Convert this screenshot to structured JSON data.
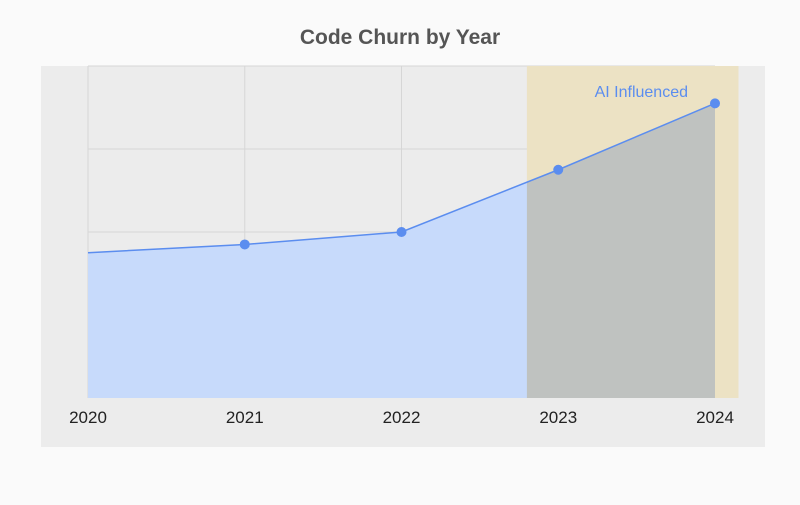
{
  "chart_data": {
    "type": "area",
    "title": "Code Churn by Year",
    "categories": [
      "2020",
      "2021",
      "2022",
      "2023",
      "2024"
    ],
    "series": [
      {
        "values": [
          35,
          37,
          40,
          55,
          71
        ]
      }
    ],
    "ylim": [
      0,
      80
    ],
    "grid": true,
    "annotation": {
      "label": "AI Influenced",
      "x_start": 2022.8,
      "x_end": 2024.15
    },
    "colors": {
      "plot_bg": "#ececec",
      "fill": "#c7dafb",
      "line": "#5b8def",
      "marker": "#5b8def",
      "band": "#ece2c4",
      "overlay": "#bfc2c0",
      "grid": "#d6d6d6",
      "label": "#222222",
      "annotation_text": "#5b8def"
    }
  }
}
